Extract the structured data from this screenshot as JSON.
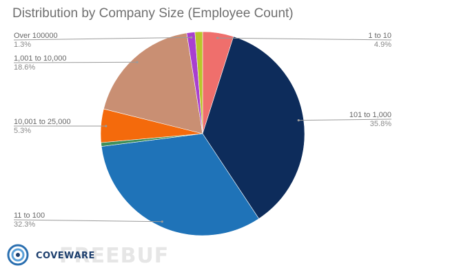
{
  "chart_data": {
    "type": "pie",
    "title": "Distribution by Company Size (Employee Count)",
    "start_angle_deg": 0,
    "slices": [
      {
        "label": "1 to 10",
        "value": 4.9,
        "display": "4.9%",
        "color": "#ef6f6c"
      },
      {
        "label": "101 to 1,000",
        "value": 35.8,
        "display": "35.8%",
        "color": "#0d2c5b"
      },
      {
        "label": "11 to 100",
        "value": 32.3,
        "display": "32.3%",
        "color": "#1f73b8"
      },
      {
        "label": "",
        "value": 0.6,
        "display": "",
        "color": "#3f8f5a"
      },
      {
        "label": "10,001 to 25,000",
        "value": 5.3,
        "display": "5.3%",
        "color": "#f46a0c"
      },
      {
        "label": "1,001 to 10,000",
        "value": 18.6,
        "display": "18.6%",
        "color": "#c98f73"
      },
      {
        "label": "",
        "value": 0.0,
        "display": "",
        "color": "#ffffff"
      },
      {
        "label": "Over 100000",
        "value": 1.3,
        "display": "1.3%",
        "color": "#a93fcf"
      },
      {
        "label": "",
        "value": 1.2,
        "display": "",
        "color": "#b9c52a"
      }
    ]
  },
  "brand": {
    "logo_text": "COVEWARE",
    "watermark_text": "FREEBUF",
    "logo_colors": [
      "#2a6fb0",
      "#1d3f6e",
      "#5aa0d8"
    ]
  }
}
